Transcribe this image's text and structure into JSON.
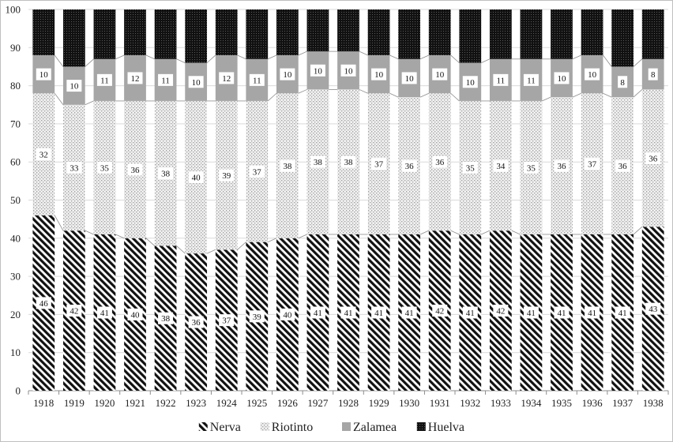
{
  "chart_data": {
    "type": "bar",
    "stacked": true,
    "title": "",
    "xlabel": "",
    "ylabel": "",
    "ylim": [
      0,
      100
    ],
    "yticks": [
      0,
      10,
      20,
      30,
      40,
      50,
      60,
      70,
      80,
      90,
      100
    ],
    "grid": true,
    "legend_position": "bottom",
    "categories": [
      "1918",
      "1919",
      "1920",
      "1921",
      "1922",
      "1923",
      "1924",
      "1925",
      "1926",
      "1927",
      "1928",
      "1929",
      "1930",
      "1931",
      "1932",
      "1933",
      "1934",
      "1935",
      "1936",
      "1937",
      "1938"
    ],
    "series": [
      {
        "name": "Nerva",
        "pattern": "diagonal-stripes",
        "color": "#111111",
        "values": [
          46,
          42,
          41,
          40,
          38,
          36,
          37,
          39,
          40,
          41,
          41,
          41,
          41,
          42,
          41,
          42,
          41,
          41,
          41,
          41,
          43
        ]
      },
      {
        "name": "Riotinto",
        "pattern": "dotted-gray",
        "color": "#bdbdbd",
        "values": [
          32,
          33,
          35,
          36,
          38,
          40,
          39,
          37,
          38,
          38,
          38,
          37,
          36,
          36,
          35,
          34,
          35,
          36,
          37,
          36,
          36
        ]
      },
      {
        "name": "Zalamea",
        "pattern": "solid-gray",
        "color": "#a6a6a6",
        "values": [
          10,
          10,
          11,
          12,
          11,
          10,
          12,
          11,
          10,
          10,
          10,
          10,
          10,
          10,
          10,
          11,
          11,
          10,
          10,
          8,
          8
        ]
      },
      {
        "name": "Huelva",
        "pattern": "black-grid",
        "color": "#111111",
        "values": [
          12,
          15,
          13,
          12,
          13,
          14,
          12,
          13,
          12,
          11,
          11,
          12,
          13,
          12,
          14,
          13,
          13,
          13,
          12,
          15,
          13
        ]
      }
    ],
    "data_labels_series": [
      "Nerva",
      "Riotinto",
      "Zalamea"
    ]
  }
}
